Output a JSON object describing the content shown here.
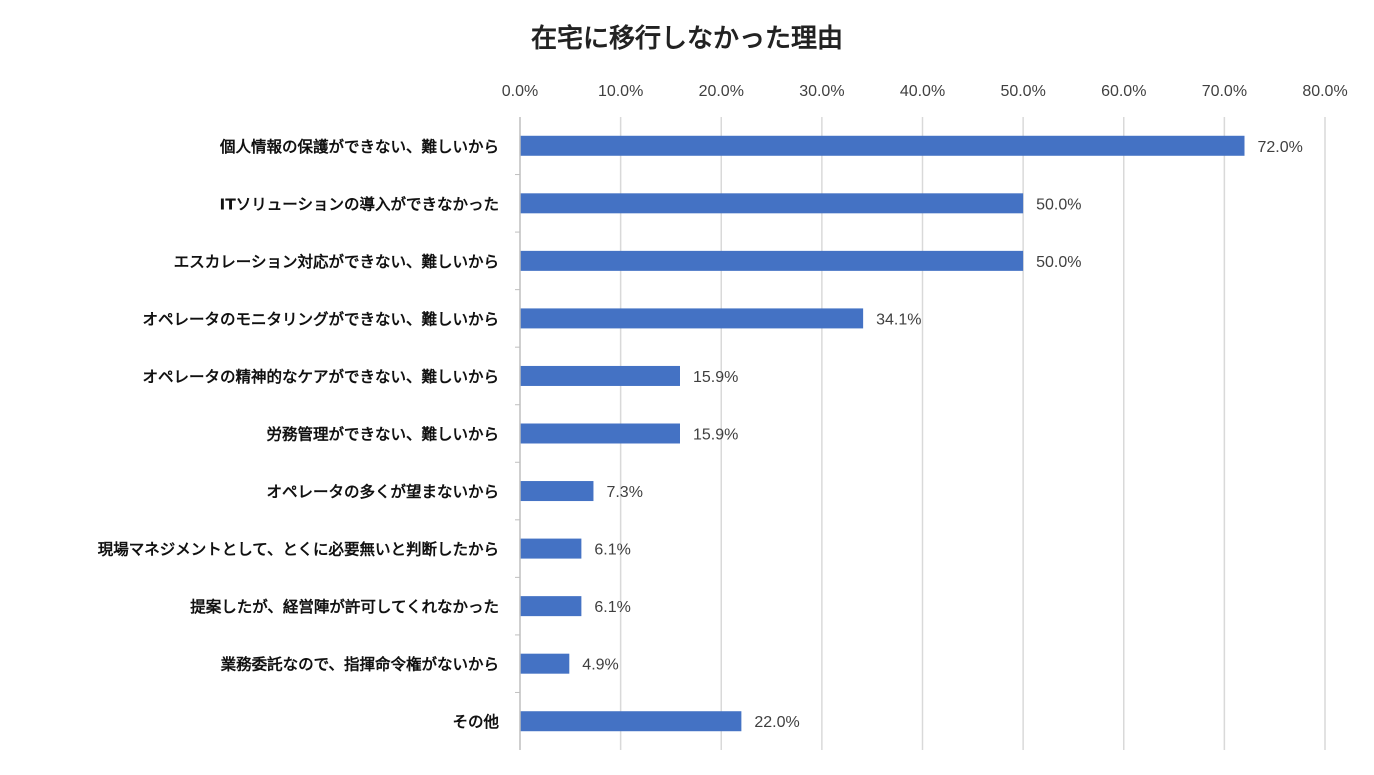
{
  "chart_data": {
    "type": "bar",
    "orientation": "horizontal",
    "title": "在宅に移行しなかった理由",
    "categories": [
      "個人情報の保護ができない、難しいから",
      "ITソリューションの導入ができなかった",
      "エスカレーション対応ができない、難しいから",
      "オペレータのモニタリングができない、難しいから",
      "オペレータの精神的なケアができない、難しいから",
      "労務管理ができない、難しいから",
      "オペレータの多くが望まないから",
      "現場マネジメントとして、とくに必要無いと判断したから",
      "提案したが、経営陣が許可してくれなかった",
      "業務委託なので、指揮命令権がないから",
      "その他"
    ],
    "values": [
      72.0,
      50.0,
      50.0,
      34.1,
      15.9,
      15.9,
      7.3,
      6.1,
      6.1,
      4.9,
      22.0
    ],
    "data_labels": [
      "72.0%",
      "50.0%",
      "50.0%",
      "34.1%",
      "15.9%",
      "15.9%",
      "7.3%",
      "6.1%",
      "6.1%",
      "4.9%",
      "22.0%"
    ],
    "xlim": [
      0,
      80
    ],
    "x_ticks": [
      0,
      10,
      20,
      30,
      40,
      50,
      60,
      70,
      80
    ],
    "x_tick_labels": [
      "0.0%",
      "10.0%",
      "20.0%",
      "30.0%",
      "40.0%",
      "50.0%",
      "60.0%",
      "70.0%",
      "80.0%"
    ],
    "x_axis_position": "top",
    "grid": true,
    "legend": "none",
    "bar_color": "#4472C4",
    "grid_color": "#D9D9D9"
  }
}
